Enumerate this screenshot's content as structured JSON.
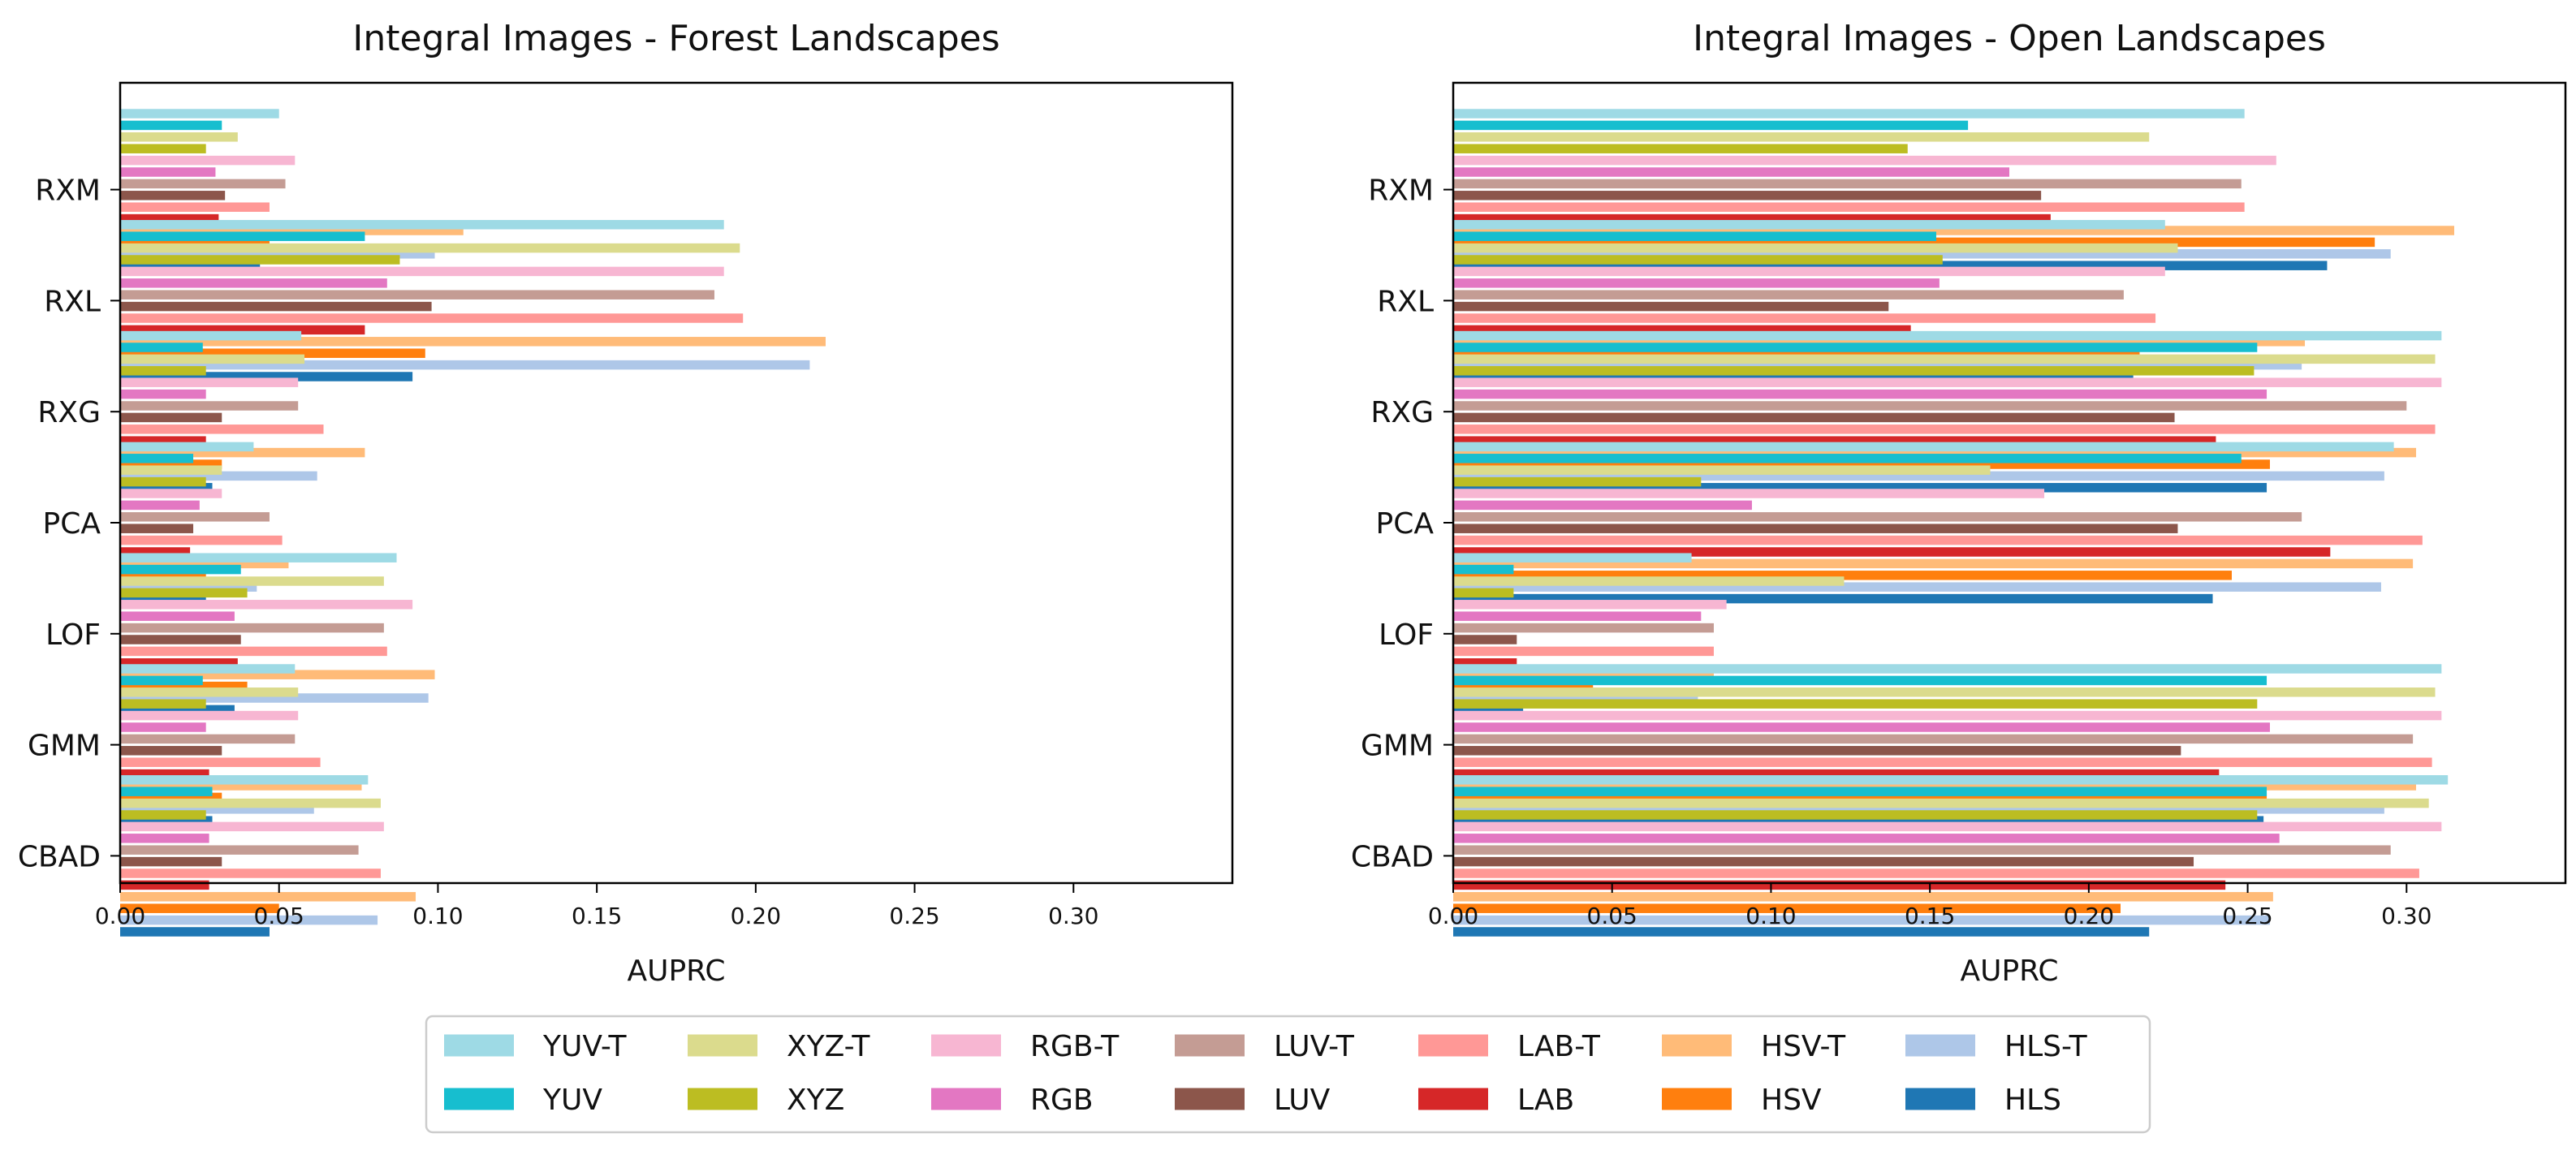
{
  "figure": {
    "legend_placement": "bottom-center"
  },
  "chart_data": [
    {
      "type": "bar",
      "orientation": "horizontal",
      "title": "Integral Images - Forest Landscapes",
      "xlabel": "AUPRC",
      "ylabel": "",
      "xlim": [
        0,
        0.35
      ],
      "xticks": [
        "0.00",
        "0.05",
        "0.10",
        "0.15",
        "0.20",
        "0.25",
        "0.30"
      ],
      "categories": [
        "RXM",
        "RXL",
        "RXG",
        "PCA",
        "LOF",
        "GMM",
        "CBAD"
      ],
      "pairs": [
        {
          "name": "YUV",
          "total": [
            0.05,
            0.19,
            0.057,
            0.042,
            0.087,
            0.055,
            0.078
          ],
          "base": [
            0.032,
            0.077,
            0.026,
            0.023,
            0.038,
            0.026,
            0.029
          ]
        },
        {
          "name": "XYZ",
          "total": [
            0.037,
            0.195,
            0.058,
            0.032,
            0.083,
            0.056,
            0.082
          ],
          "base": [
            0.027,
            0.088,
            0.027,
            0.027,
            0.04,
            0.027,
            0.027
          ]
        },
        {
          "name": "RGB",
          "total": [
            0.055,
            0.19,
            0.056,
            0.032,
            0.092,
            0.056,
            0.083
          ],
          "base": [
            0.03,
            0.084,
            0.027,
            0.025,
            0.036,
            0.027,
            0.028
          ]
        },
        {
          "name": "LUV",
          "total": [
            0.052,
            0.187,
            0.056,
            0.047,
            0.083,
            0.055,
            0.075
          ],
          "base": [
            0.033,
            0.098,
            0.032,
            0.023,
            0.038,
            0.032,
            0.032
          ]
        },
        {
          "name": "LAB",
          "total": [
            0.047,
            0.196,
            0.064,
            0.051,
            0.084,
            0.063,
            0.082
          ],
          "base": [
            0.031,
            0.077,
            0.027,
            0.022,
            0.037,
            0.028,
            0.028
          ]
        },
        {
          "name": "HSV",
          "total": [
            0.108,
            0.222,
            0.077,
            0.053,
            0.099,
            0.076,
            0.093
          ],
          "base": [
            0.047,
            0.096,
            0.032,
            0.027,
            0.04,
            0.032,
            0.05
          ]
        },
        {
          "name": "HLS",
          "total": [
            0.099,
            0.217,
            0.062,
            0.043,
            0.097,
            0.061,
            0.081
          ],
          "base": [
            0.044,
            0.092,
            0.029,
            0.027,
            0.036,
            0.029,
            0.047
          ]
        }
      ]
    },
    {
      "type": "bar",
      "orientation": "horizontal",
      "title": "Integral Images - Open Landscapes",
      "xlabel": "AUPRC",
      "ylabel": "",
      "xlim": [
        0,
        0.35
      ],
      "xticks": [
        "0.00",
        "0.05",
        "0.10",
        "0.15",
        "0.20",
        "0.25",
        "0.30"
      ],
      "categories": [
        "RXM",
        "RXL",
        "RXG",
        "PCA",
        "LOF",
        "GMM",
        "CBAD"
      ],
      "pairs": [
        {
          "name": "YUV",
          "total": [
            0.249,
            0.224,
            0.311,
            0.296,
            0.075,
            0.311,
            0.313
          ],
          "base": [
            0.162,
            0.152,
            0.253,
            0.248,
            0.019,
            0.256,
            0.256
          ]
        },
        {
          "name": "XYZ",
          "total": [
            0.219,
            0.228,
            0.309,
            0.169,
            0.123,
            0.309,
            0.307
          ],
          "base": [
            0.143,
            0.154,
            0.252,
            0.078,
            0.019,
            0.253,
            0.253
          ]
        },
        {
          "name": "RGB",
          "total": [
            0.259,
            0.224,
            0.311,
            0.186,
            0.086,
            0.311,
            0.311
          ],
          "base": [
            0.175,
            0.153,
            0.256,
            0.094,
            0.078,
            0.257,
            0.26
          ]
        },
        {
          "name": "LUV",
          "total": [
            0.248,
            0.211,
            0.3,
            0.267,
            0.082,
            0.302,
            0.295
          ],
          "base": [
            0.185,
            0.137,
            0.227,
            0.228,
            0.02,
            0.229,
            0.233
          ]
        },
        {
          "name": "LAB",
          "total": [
            0.249,
            0.221,
            0.309,
            0.305,
            0.082,
            0.308,
            0.304
          ],
          "base": [
            0.188,
            0.144,
            0.24,
            0.276,
            0.02,
            0.241,
            0.243
          ]
        },
        {
          "name": "HSV",
          "total": [
            0.315,
            0.268,
            0.303,
            0.302,
            0.082,
            0.303,
            0.258
          ],
          "base": [
            0.29,
            0.216,
            0.257,
            0.245,
            0.044,
            0.256,
            0.21
          ]
        },
        {
          "name": "HLS",
          "total": [
            0.295,
            0.267,
            0.293,
            0.292,
            0.077,
            0.293,
            0.257
          ],
          "base": [
            0.275,
            0.214,
            0.256,
            0.239,
            0.022,
            0.255,
            0.219
          ]
        }
      ]
    }
  ],
  "legend": {
    "entries": [
      {
        "label": "YUV-T",
        "color": "#9edae5"
      },
      {
        "label": "YUV",
        "color": "#17becf"
      },
      {
        "label": "XYZ-T",
        "color": "#dbdb8d"
      },
      {
        "label": "XYZ",
        "color": "#bcbd22"
      },
      {
        "label": "RGB-T",
        "color": "#f7b6d2"
      },
      {
        "label": "RGB",
        "color": "#e377c2"
      },
      {
        "label": "LUV-T",
        "color": "#c49c94"
      },
      {
        "label": "LUV",
        "color": "#8c564b"
      },
      {
        "label": "LAB-T",
        "color": "#ff9896"
      },
      {
        "label": "LAB",
        "color": "#d62728"
      },
      {
        "label": "HSV-T",
        "color": "#ffbb78"
      },
      {
        "label": "HSV",
        "color": "#ff7f0e"
      },
      {
        "label": "HLS-T",
        "color": "#aec7e8"
      },
      {
        "label": "HLS",
        "color": "#1f77b4"
      }
    ]
  },
  "colors": {
    "YUV": {
      "total": "#9edae5",
      "base": "#17becf"
    },
    "XYZ": {
      "total": "#dbdb8d",
      "base": "#bcbd22"
    },
    "RGB": {
      "total": "#f7b6d2",
      "base": "#e377c2"
    },
    "LUV": {
      "total": "#c49c94",
      "base": "#8c564b"
    },
    "LAB": {
      "total": "#ff9896",
      "base": "#d62728"
    },
    "HSV": {
      "total": "#ffbb78",
      "base": "#ff7f0e"
    },
    "HLS": {
      "total": "#aec7e8",
      "base": "#1f77b4"
    }
  }
}
